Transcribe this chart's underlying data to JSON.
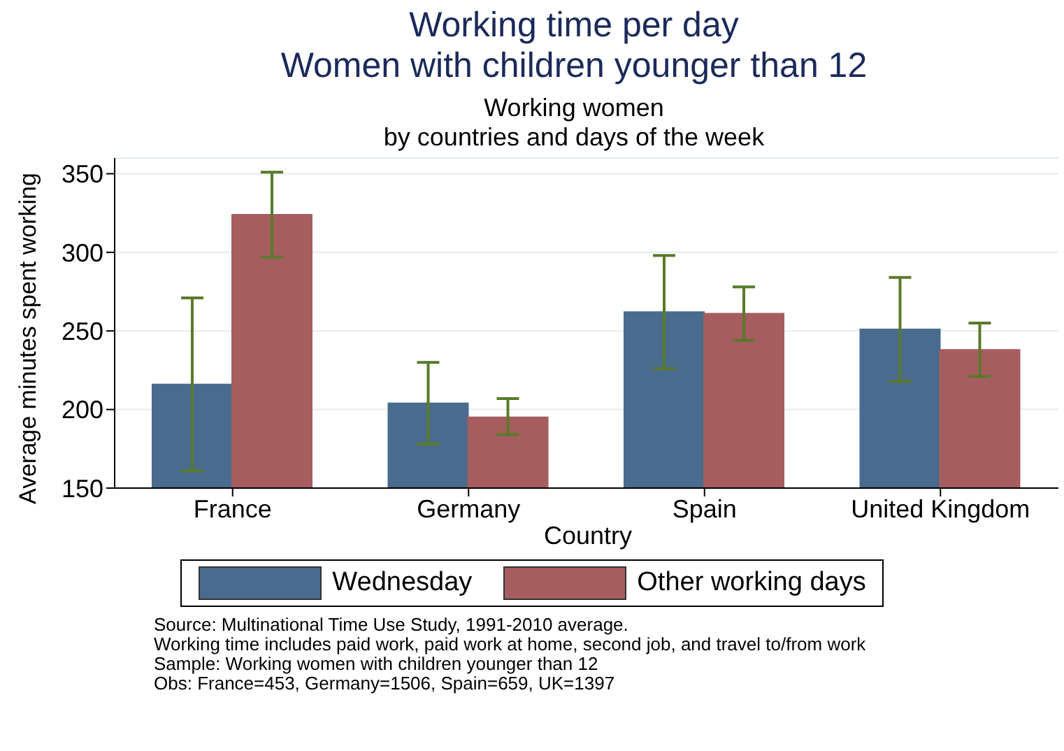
{
  "chart_data": {
    "type": "bar",
    "title": "Working time per day\nWomen with children younger than 12",
    "subtitle": "Working women\nby countries and days of the week",
    "xlabel": "Country",
    "ylabel": "Average minutes spent working",
    "categories": [
      "France",
      "Germany",
      "Spain",
      "United Kingdom"
    ],
    "series": [
      {
        "name": "Wednesday",
        "color": "#486b8e",
        "values": [
          216,
          204,
          262,
          251
        ],
        "errors": [
          [
            161,
            271
          ],
          [
            178,
            230
          ],
          [
            226,
            298
          ],
          [
            218,
            284
          ]
        ]
      },
      {
        "name": "Other working days",
        "color": "#a65d5f",
        "values": [
          324,
          195,
          261,
          238
        ],
        "errors": [
          [
            297,
            351
          ],
          [
            184,
            207
          ],
          [
            244,
            278
          ],
          [
            221,
            255
          ]
        ]
      }
    ],
    "ylim": [
      150,
      360
    ],
    "yticks": [
      150,
      200,
      250,
      300,
      350
    ],
    "grid": "y",
    "legend": "bottom",
    "annotations": [
      "Source:  Multinational Time Use Study, 1991-2010 average.",
      "Working time includes paid work, paid work at home, second job, and travel to/from work",
      "Sample: Working women with children younger than 12",
      "Obs: France=453, Germany=1506, Spain=659, UK=1397"
    ]
  }
}
